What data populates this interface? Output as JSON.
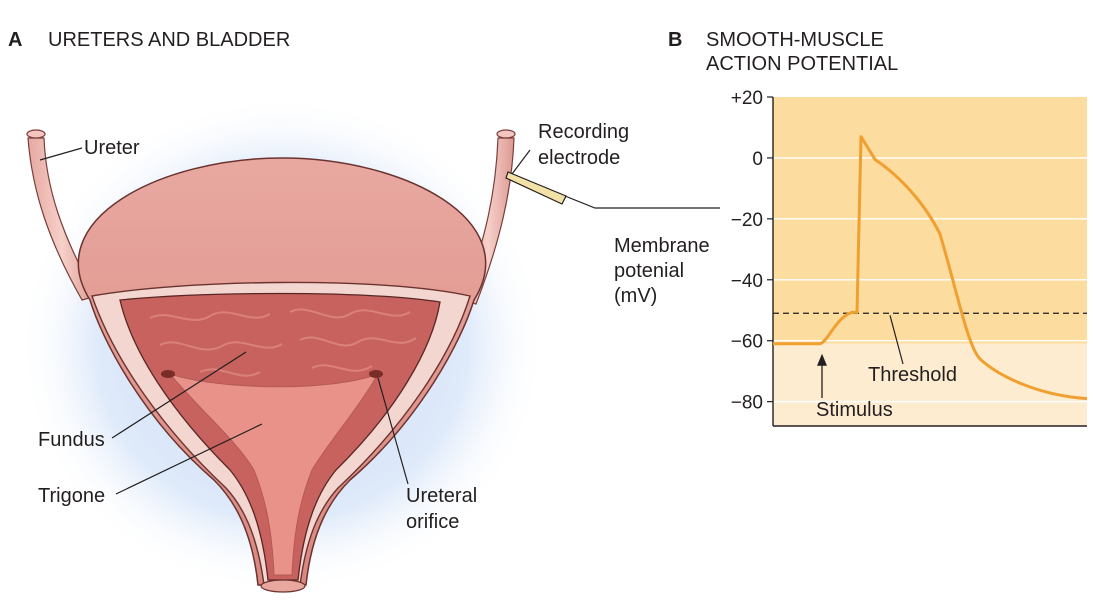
{
  "panel_a": {
    "letter": "A",
    "title": "URETERS AND BLADDER",
    "labels": {
      "ureter": "Ureter",
      "recording_electrode_line1": "Recording",
      "recording_electrode_line2": "electrode",
      "fundus": "Fundus",
      "trigone": "Trigone",
      "ureteral_orifice_line1": "Ureteral",
      "ureteral_orifice_line2": "orifice"
    }
  },
  "panel_b": {
    "letter": "B",
    "title_line1": "SMOOTH-MUSCLE",
    "title_line2": "ACTION POTENTIAL",
    "ylabel_line1": "Membrane",
    "ylabel_line2": "potenial",
    "ylabel_line3": "(mV)",
    "threshold_label": "Threshold",
    "stimulus_label": "Stimulus"
  },
  "chart_data": {
    "type": "line",
    "ylim": [
      -88,
      20
    ],
    "yticks": [
      "+20",
      "0",
      "−20",
      "−40",
      "−60",
      "−80"
    ],
    "ytick_values": [
      20,
      0,
      -20,
      -40,
      -60,
      -80
    ],
    "grid": true,
    "threshold_mV": -51,
    "resting_mV": -61,
    "colors": {
      "trace": "#f0a030",
      "upper_bg": "#fddca0",
      "lower_bg": "#feecd0"
    }
  }
}
